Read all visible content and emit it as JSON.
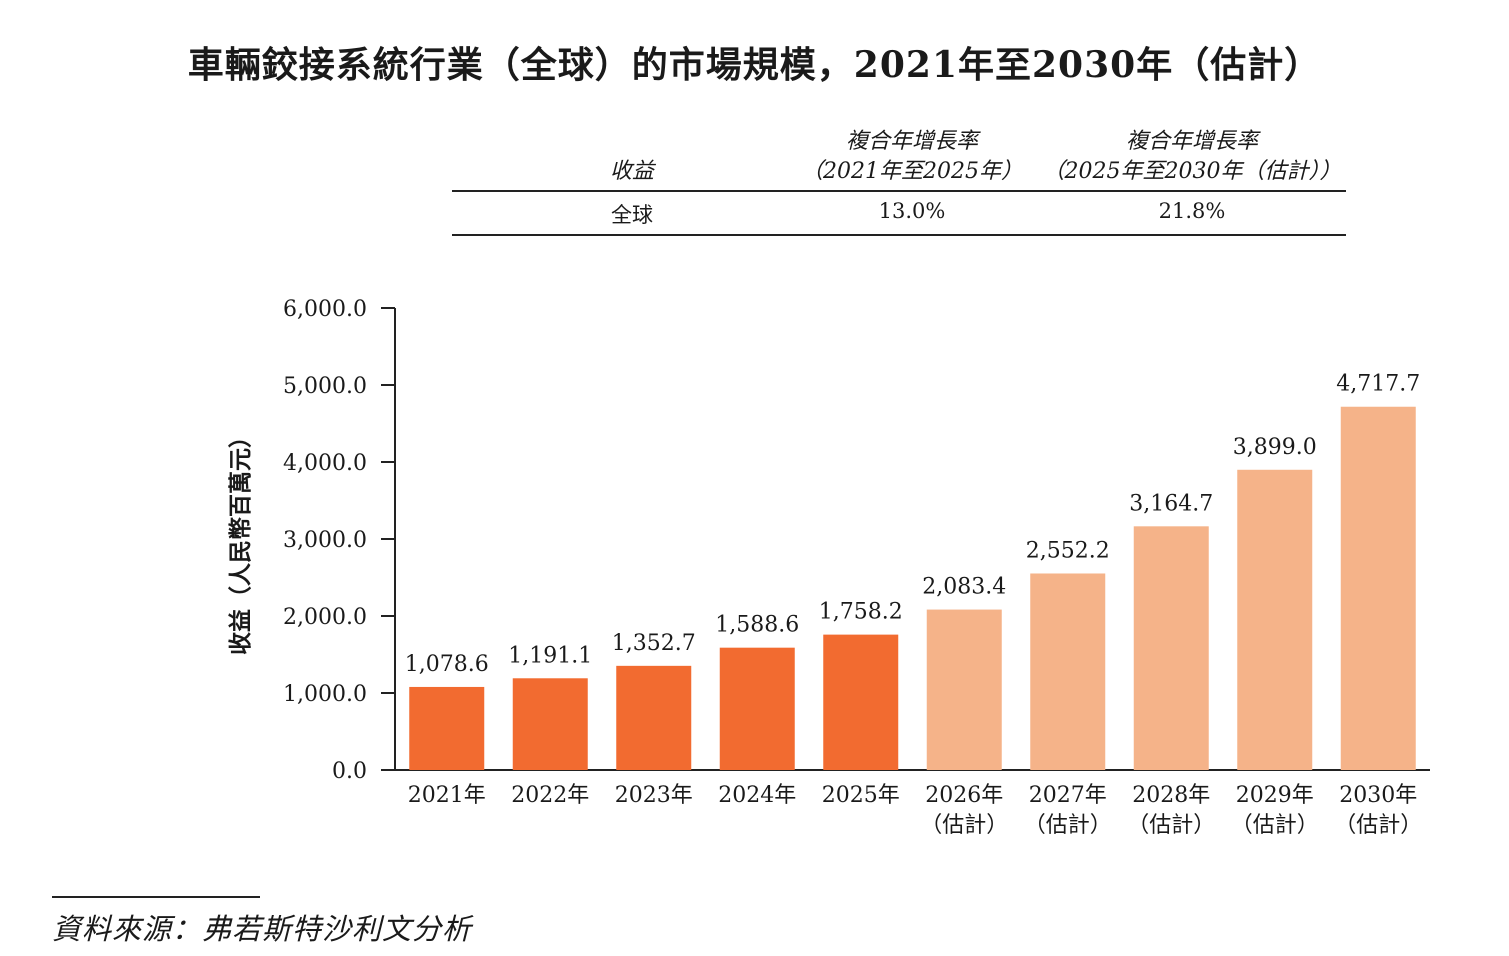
{
  "title": "車輛鉸接系統行業（全球）的市場規模，2021年至2030年（估計）",
  "cagr_table": {
    "headers": {
      "col1": "收益",
      "col2_line1": "複合年增長率",
      "col2_line2": "（2021年至2025年）",
      "col3_line1": "複合年增長率",
      "col3_line2": "（2025年至2030年（估計））"
    },
    "rows": [
      {
        "label": "全球",
        "cagr_2021_2025": "13.0%",
        "cagr_2025_2030": "21.8%"
      }
    ]
  },
  "chart_data": {
    "type": "bar",
    "ylabel": "收益（人民幣百萬元）",
    "ylim": [
      0,
      6000
    ],
    "yticks": [
      "0.0",
      "1,000.0",
      "2,000.0",
      "3,000.0",
      "4,000.0",
      "5,000.0",
      "6,000.0"
    ],
    "categories": [
      [
        "2021年"
      ],
      [
        "2022年"
      ],
      [
        "2023年"
      ],
      [
        "2024年"
      ],
      [
        "2025年"
      ],
      [
        "2026年",
        "（估計）"
      ],
      [
        "2027年",
        "（估計）"
      ],
      [
        "2028年",
        "（估計）"
      ],
      [
        "2029年",
        "（估計）"
      ],
      [
        "2030年",
        "（估計）"
      ]
    ],
    "values": [
      1078.6,
      1191.1,
      1352.7,
      1588.6,
      1758.2,
      2083.4,
      2552.2,
      3164.7,
      3899.0,
      4717.7
    ],
    "value_labels": [
      "1,078.6",
      "1,191.1",
      "1,352.7",
      "1,588.6",
      "1,758.2",
      "2,083.4",
      "2,552.2",
      "3,164.7",
      "3,899.0",
      "4,717.7"
    ],
    "colors": {
      "actual": "#F26B30",
      "estimated": "#F5B389",
      "axis": "#222222"
    },
    "estimated_from_index": 5
  },
  "source": "資料來源：弗若斯特沙利文分析"
}
